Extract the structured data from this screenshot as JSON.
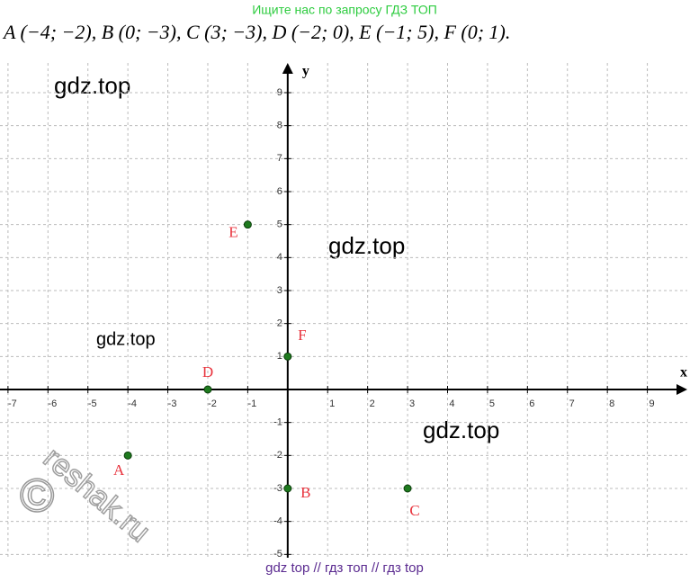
{
  "chart_data": {
    "type": "scatter",
    "header": "Ищите нас по запросу ГДЗ ТОП",
    "title": "A (−4; −2), B (0; −3), C (3; −3), D (−2; 0), E (−1; 5), F (0; 1).",
    "x_label": "x",
    "y_label": "y",
    "labels": [
      "A",
      "B",
      "C",
      "D",
      "E",
      "F"
    ],
    "x": [
      -4,
      0,
      3,
      -2,
      -1,
      0
    ],
    "values": [
      -2,
      -3,
      -3,
      0,
      5,
      1
    ],
    "color": "#1e7a1e",
    "label_color": "#e8323c",
    "xlim": [
      -7.2,
      10
    ],
    "ylim": [
      -5.1,
      9.9
    ],
    "xticks": [
      -7,
      -6,
      -5,
      -4,
      -3,
      -2,
      -1,
      1,
      2,
      3,
      4,
      5,
      6,
      7,
      8,
      9
    ],
    "yticks": [
      9,
      8,
      7,
      6,
      5,
      4,
      3,
      2,
      1,
      -1,
      -2,
      -3,
      -4,
      -5
    ],
    "grid": true,
    "watermarks": [
      "gdz.top",
      "gdz.top",
      "gdz.top",
      "gdz.top"
    ],
    "stamp": "reshak.ru",
    "stamp_symbol": "©",
    "footer": "gdz top  //  гдз топ  //  гдз top"
  }
}
